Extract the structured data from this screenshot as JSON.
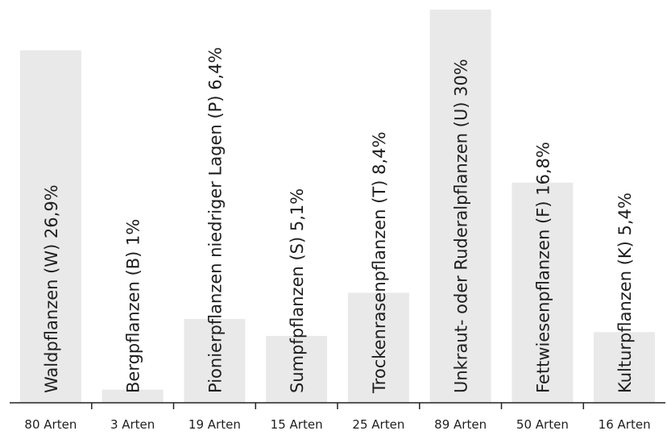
{
  "chart_data": {
    "type": "bar",
    "bar_color": "#e9e9e9",
    "text_color": "#1e1e1e",
    "ylim": [
      0,
      30
    ],
    "bars": [
      {
        "label": "Waldpflanzen (W) 26,9%",
        "value": 26.9,
        "category": "80 Arten"
      },
      {
        "label": "Bergpflanzen (B) 1%",
        "value": 1.0,
        "category": "3 Arten"
      },
      {
        "label": "Pionierpflanzen niedriger Lagen (P) 6,4%",
        "value": 6.4,
        "category": "19 Arten"
      },
      {
        "label": "Sumpfpflanzen (S) 5,1%",
        "value": 5.1,
        "category": "15 Arten"
      },
      {
        "label": "Trockenrasenpflanzen (T) 8,4%",
        "value": 8.4,
        "category": "25 Arten"
      },
      {
        "label": "Unkraut- oder Ruderalpflanzen (U) 30%",
        "value": 30.0,
        "category": "89 Arten"
      },
      {
        "label": "Fettwiesenpflanzen (F) 16,8%",
        "value": 16.8,
        "category": "50 Arten"
      },
      {
        "label": "Kulturpflanzen (K) 5,4%",
        "value": 5.4,
        "category": "16 Arten"
      }
    ]
  }
}
